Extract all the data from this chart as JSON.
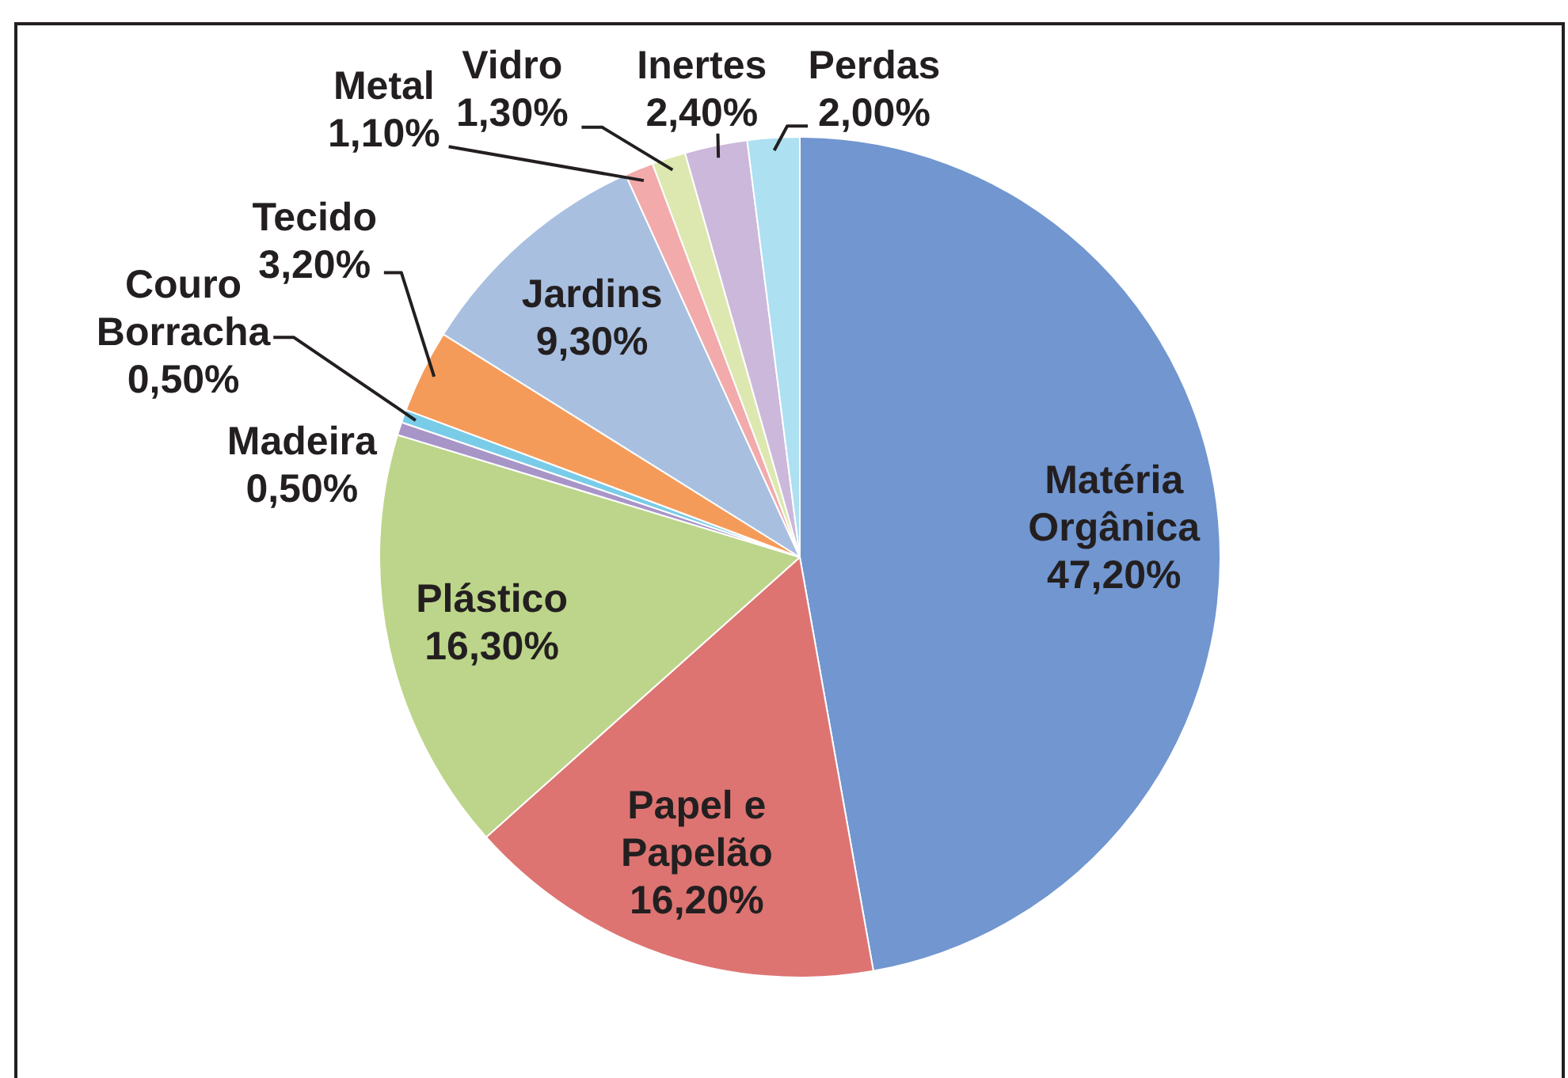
{
  "chart_data": {
    "type": "pie",
    "categories": [
      "Matéria Orgânica",
      "Papel e Papelão",
      "Plástico",
      "Madeira",
      "Couro Borracha",
      "Tecido",
      "Jardins",
      "Metal",
      "Vidro",
      "Inertes",
      "Perdas"
    ],
    "values": [
      47.2,
      16.2,
      16.3,
      0.5,
      0.5,
      3.2,
      9.3,
      1.1,
      1.3,
      2.4,
      2.0
    ],
    "colors": [
      "#7196d0",
      "#dd7472",
      "#bcd58a",
      "#a895c8",
      "#79cce8",
      "#f59b5a",
      "#a8bfe0",
      "#f2aaaa",
      "#dde8b0",
      "#cbb8db",
      "#ade0f0"
    ],
    "value_labels": [
      "47,20%",
      "16,20%",
      "16,30%",
      "0,50%",
      "0,50%",
      "3,20%",
      "9,30%",
      "1,10%",
      "1,30%",
      "2,40%",
      "2,00%"
    ]
  }
}
